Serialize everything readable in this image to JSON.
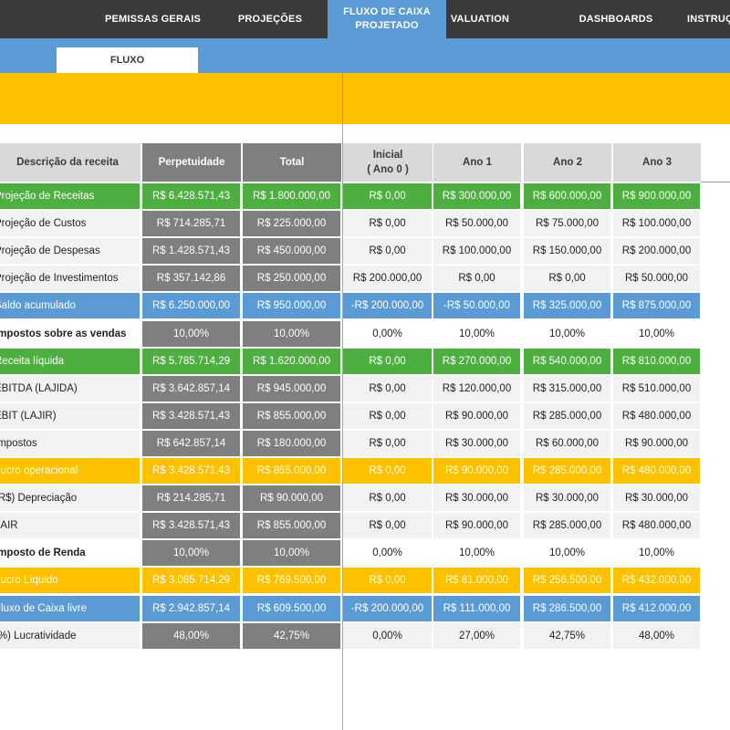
{
  "nav": {
    "tabs": [
      {
        "label": "PEMISSAS GERAIS"
      },
      {
        "label": "PROJEÇÕES"
      },
      {
        "label": "FLUXO DE CAIXA PROJETADO",
        "active": true
      },
      {
        "label": "VALUATION"
      },
      {
        "label": "DASHBOARDS"
      },
      {
        "label": "INSTRUÇÕES"
      }
    ]
  },
  "subtab": {
    "label": "FLUXO"
  },
  "colors": {
    "nav_bg": "#3a3a3a",
    "accent_blue": "#5b9bd5",
    "yellow": "#ffc000",
    "green": "#4caf3f",
    "gray_dark": "#7f7f7f",
    "gray_header": "#d9d9d9",
    "gray_light": "#f2f2f2"
  },
  "table": {
    "columns": [
      "Descrição da receita",
      "Perpetuidade",
      "Total",
      "Inicial\n( Ano 0 )",
      "Ano 1",
      "Ano 2",
      "Ano 3"
    ],
    "rows": [
      {
        "style": "green",
        "cells": [
          "Projeção de Receitas",
          "R$ 6.428.571,43",
          "R$ 1.800.000,00",
          "R$ 0,00",
          "R$ 300.000,00",
          "R$ 600.000,00",
          "R$ 900.000,00"
        ]
      },
      {
        "style": "plain",
        "cells": [
          "Projeção de Custos",
          "R$ 714.285,71",
          "R$ 225.000,00",
          "R$ 0,00",
          "R$ 50.000,00",
          "R$ 75.000,00",
          "R$ 100.000,00"
        ]
      },
      {
        "style": "plain",
        "cells": [
          "Projeção de Despesas",
          "R$ 1.428.571,43",
          "R$ 450.000,00",
          "R$ 0,00",
          "R$ 100.000,00",
          "R$ 150.000,00",
          "R$ 200.000,00"
        ]
      },
      {
        "style": "plain",
        "cells": [
          "Projeção de Investimentos",
          "R$ 357.142,86",
          "R$ 250.000,00",
          "R$ 200.000,00",
          "R$ 0,00",
          "R$ 0,00",
          "R$ 50.000,00"
        ]
      },
      {
        "style": "blue",
        "cells": [
          "Saldo acumulado",
          "R$ 6.250.000,00",
          "R$ 950.000,00",
          "-R$ 200.000,00",
          "-R$ 50.000,00",
          "R$ 325.000,00",
          "R$ 875.000,00"
        ]
      },
      {
        "style": "bold",
        "cells": [
          "Impostos sobre as vendas",
          "10,00%",
          "10,00%",
          "0,00%",
          "10,00%",
          "10,00%",
          "10,00%"
        ]
      },
      {
        "style": "green",
        "cells": [
          "Receita líquida",
          "R$ 5.785.714,29",
          "R$ 1.620.000,00",
          "R$ 0,00",
          "R$ 270.000,00",
          "R$ 540.000,00",
          "R$ 810.000,00"
        ]
      },
      {
        "style": "plain",
        "cells": [
          "EBITDA (LAJIDA)",
          "R$ 3.642.857,14",
          "R$ 945.000,00",
          "R$ 0,00",
          "R$ 120.000,00",
          "R$ 315.000,00",
          "R$ 510.000,00"
        ]
      },
      {
        "style": "plain",
        "cells": [
          "EBIT (LAJIR)",
          "R$ 3.428.571,43",
          "R$ 855.000,00",
          "R$ 0,00",
          "R$ 90.000,00",
          "R$ 285.000,00",
          "R$ 480.000,00"
        ]
      },
      {
        "style": "plain",
        "cells": [
          "Impostos",
          "R$ 642.857,14",
          "R$ 180.000,00",
          "R$ 0,00",
          "R$ 30.000,00",
          "R$ 60.000,00",
          "R$ 90.000,00"
        ]
      },
      {
        "style": "yellow",
        "cells": [
          "Lucro operacional",
          "R$ 3.428.571,43",
          "R$ 855.000,00",
          "R$ 0,00",
          "R$ 90.000,00",
          "R$ 285.000,00",
          "R$ 480.000,00"
        ]
      },
      {
        "style": "plain",
        "cells": [
          "(R$) Depreciação",
          "R$ 214.285,71",
          "R$ 90.000,00",
          "R$ 0,00",
          "R$ 30.000,00",
          "R$ 30.000,00",
          "R$ 30.000,00"
        ]
      },
      {
        "style": "plain",
        "cells": [
          "LAIR",
          "R$ 3.428.571,43",
          "R$ 855.000,00",
          "R$ 0,00",
          "R$ 90.000,00",
          "R$ 285.000,00",
          "R$ 480.000,00"
        ]
      },
      {
        "style": "bold",
        "cells": [
          "Imposto de Renda",
          "10,00%",
          "10,00%",
          "0,00%",
          "10,00%",
          "10,00%",
          "10,00%"
        ]
      },
      {
        "style": "yellow",
        "cells": [
          "Lucro Líquido",
          "R$ 3.085.714,29",
          "R$ 769.500,00",
          "R$ 0,00",
          "R$ 81.000,00",
          "R$ 256.500,00",
          "R$ 432.000,00"
        ]
      },
      {
        "style": "blue",
        "cells": [
          "Fluxo de Caixa livre",
          "R$ 2.942.857,14",
          "R$ 609.500,00",
          "-R$ 200.000,00",
          "R$ 111.000,00",
          "R$ 286.500,00",
          "R$ 412.000,00"
        ]
      },
      {
        "style": "plain",
        "cells": [
          "(%) Lucratividade",
          "48,00%",
          "42,75%",
          "0,00%",
          "27,00%",
          "42,75%",
          "48,00%"
        ]
      }
    ]
  }
}
